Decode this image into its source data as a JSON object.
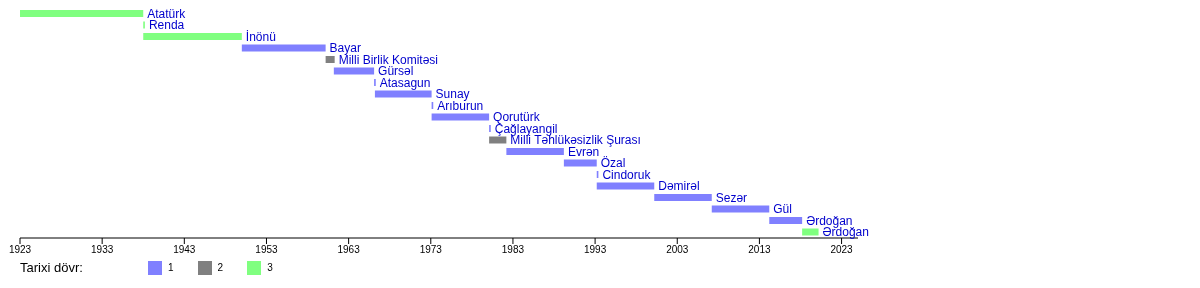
{
  "chart_data": {
    "type": "bar",
    "orientation": "horizontal",
    "legend_title": "Tarixi dövr:",
    "legend": "bottom",
    "grid": false,
    "tick_labels": "x",
    "categories": [
      "Atatürk",
      "Renda",
      "İnönü",
      "Bayar",
      "Milli Birlik Komitəsi",
      "Gürsəl",
      "Atasagun",
      "Sunay",
      "Arıburun",
      "Qorutürk",
      "Çağlayangil",
      "Milli Təhlükəsizlik Şurası",
      "Evrən",
      "Özal",
      "Cindoruk",
      "Dəmirəl",
      "Sezər",
      "Gül",
      "Ərdoğan",
      "Ərdoğan"
    ],
    "series": [
      {
        "name": "1",
        "color": "#8080ff",
        "base": [
          null,
          null,
          null,
          1950,
          null,
          1961.2,
          1966.1,
          1966.2,
          1973.1,
          1973.1,
          1980.1,
          null,
          1982.2,
          1989.2,
          1993.2,
          1993.2,
          2000.2,
          2007.2,
          2014.2,
          null
        ],
        "values": [
          null,
          null,
          null,
          10.2,
          null,
          4.9,
          0.2,
          6.9,
          0.2,
          7,
          0.2,
          null,
          7,
          4,
          0.2,
          7,
          7,
          7,
          4,
          null
        ]
      },
      {
        "name": "2",
        "color": "#808080",
        "base": [
          null,
          null,
          null,
          null,
          1960.2,
          null,
          null,
          null,
          null,
          null,
          null,
          1980.1,
          null,
          null,
          null,
          null,
          null,
          null,
          null,
          null
        ],
        "values": [
          null,
          null,
          null,
          null,
          1.1,
          null,
          null,
          null,
          null,
          null,
          null,
          2.1,
          null,
          null,
          null,
          null,
          null,
          null,
          null,
          null
        ]
      },
      {
        "name": "3",
        "color": "#80ff80",
        "base": [
          1923,
          1938,
          1938,
          null,
          null,
          null,
          null,
          null,
          null,
          null,
          null,
          null,
          null,
          null,
          null,
          null,
          null,
          null,
          null,
          2018.2
        ],
        "values": [
          15,
          0.2,
          12,
          null,
          null,
          null,
          null,
          null,
          null,
          null,
          null,
          null,
          null,
          null,
          null,
          null,
          null,
          null,
          null,
          2
        ]
      }
    ],
    "xlim": [
      1923,
      2025
    ],
    "xticks": [
      1923,
      1933,
      1943,
      1953,
      1963,
      1973,
      1983,
      1993,
      2003,
      2013,
      2023
    ]
  }
}
